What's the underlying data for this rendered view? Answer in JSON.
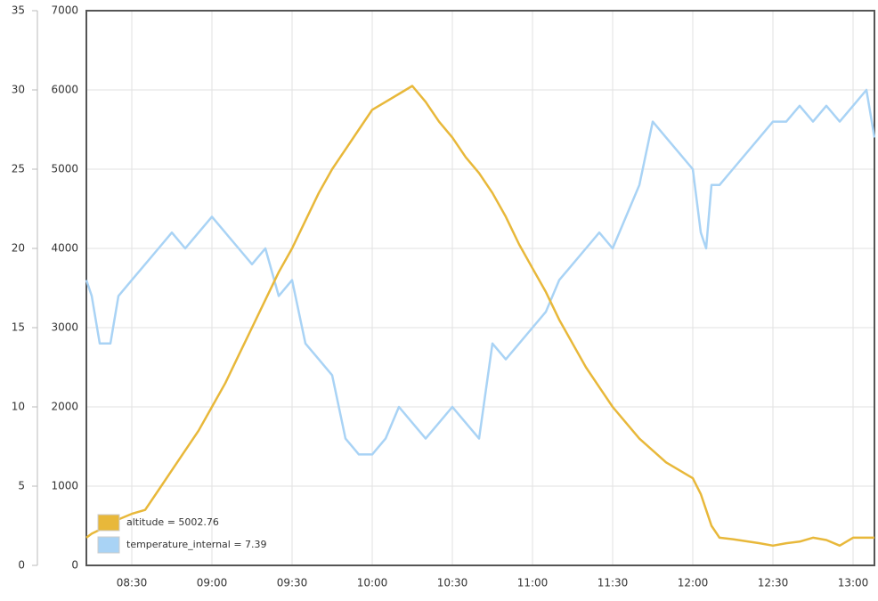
{
  "chart_data": {
    "type": "line",
    "x": [
      "08:13",
      "08:15",
      "08:18",
      "08:22",
      "08:25",
      "08:30",
      "08:35",
      "08:40",
      "08:45",
      "08:50",
      "08:55",
      "09:00",
      "09:05",
      "09:10",
      "09:15",
      "09:20",
      "09:25",
      "09:30",
      "09:35",
      "09:40",
      "09:45",
      "09:50",
      "09:55",
      "10:00",
      "10:05",
      "10:10",
      "10:15",
      "10:20",
      "10:25",
      "10:30",
      "10:35",
      "10:40",
      "10:45",
      "10:50",
      "10:55",
      "11:00",
      "11:05",
      "11:10",
      "11:15",
      "11:20",
      "11:25",
      "11:30",
      "11:35",
      "11:40",
      "11:45",
      "11:50",
      "11:55",
      "12:00",
      "12:03",
      "12:05",
      "12:07",
      "12:10",
      "12:15",
      "12:25",
      "12:30",
      "12:35",
      "12:40",
      "12:45",
      "12:50",
      "12:55",
      "13:00",
      "13:05",
      "13:08"
    ],
    "series": [
      {
        "name": "altitude = 5002.76",
        "color": "#e8b83a",
        "axis": "y2",
        "values": [
          350,
          400,
          450,
          520,
          580,
          650,
          700,
          950,
          1200,
          1450,
          1700,
          2000,
          2300,
          2650,
          3000,
          3350,
          3700,
          4000,
          4350,
          4700,
          5000,
          5250,
          5500,
          5750,
          5850,
          5950,
          6050,
          5850,
          5600,
          5400,
          5150,
          4950,
          4700,
          4400,
          4050,
          3750,
          3450,
          3100,
          2800,
          2500,
          2250,
          2000,
          1800,
          1600,
          1450,
          1300,
          1200,
          1100,
          900,
          700,
          500,
          350,
          330,
          280,
          250,
          280,
          300,
          350,
          320,
          250,
          350,
          350,
          350
        ]
      },
      {
        "name": "temperature_internal = 7.39",
        "color": "#a9d3f5",
        "values": [
          18,
          17,
          14,
          14,
          17,
          18,
          19,
          20,
          21,
          20,
          21,
          22,
          21,
          20,
          19,
          20,
          17,
          18,
          14,
          13,
          12,
          8,
          7,
          7,
          8,
          10,
          9,
          8,
          9,
          10,
          9,
          8,
          14,
          13,
          14,
          15,
          16,
          18,
          19,
          20,
          21,
          20,
          22,
          24,
          28,
          27,
          26,
          25,
          21,
          20,
          24,
          24,
          25,
          27,
          28,
          28,
          29,
          28,
          29,
          28,
          29,
          30,
          27
        ]
      }
    ],
    "xlim": [
      "08:13",
      "13:08"
    ],
    "xticks": [
      "08:30",
      "09:00",
      "09:30",
      "10:00",
      "10:30",
      "11:00",
      "11:30",
      "12:00",
      "12:30",
      "13:00"
    ],
    "ylim": [
      0,
      35
    ],
    "yticks": [
      0,
      5,
      10,
      15,
      20,
      25,
      30,
      35
    ],
    "y2lim": [
      0,
      7000
    ],
    "y2ticks": [
      0,
      1000,
      2000,
      3000,
      4000,
      5000,
      6000,
      7000
    ],
    "grid": true,
    "legend": "lower left"
  }
}
